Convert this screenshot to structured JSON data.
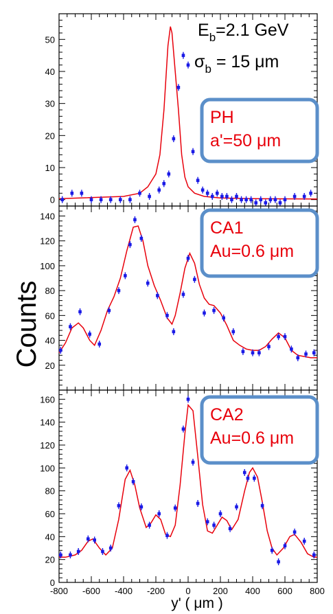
{
  "figure": {
    "ylabel": "Counts",
    "xlabel": "y' ( μm )",
    "beam_energy": "Eb=2.1 GeV",
    "beam_energy_main": "E",
    "beam_energy_sub": "b",
    "beam_energy_rest": "=2.1 GeV",
    "beam_sigma_main": "σ",
    "beam_sigma_sub": "b",
    "beam_sigma_rest": " = 15 μm"
  },
  "colors": {
    "fit": "#e8000b",
    "points": "#1a1ae6",
    "box_border": "#5b8fc9"
  },
  "chart_data": [
    {
      "type": "scatter",
      "title": "",
      "xlim": [
        -800,
        800
      ],
      "ylim": [
        -2,
        58
      ],
      "yticks": [
        0,
        10,
        20,
        30,
        40,
        50
      ],
      "box_lines": [
        "PH",
        "a'=50 μm"
      ],
      "series": [
        {
          "x": [
            -780,
            -720,
            -660,
            -600,
            -540,
            -480,
            -420,
            -360,
            -300,
            -240,
            -180,
            -150,
            -120,
            -90,
            -60,
            -30,
            0,
            30,
            60,
            90,
            120,
            150,
            180,
            210,
            240,
            270,
            300,
            330,
            360,
            390,
            420,
            450,
            480,
            510,
            540,
            570,
            600,
            660,
            720,
            760
          ],
          "y": [
            0,
            2,
            2,
            0,
            0,
            0,
            0,
            0,
            2,
            1,
            3,
            5,
            8,
            19,
            35,
            45,
            42,
            15,
            6,
            3,
            2,
            1,
            2,
            1,
            1,
            0,
            1,
            0,
            0,
            0,
            -1,
            0,
            -1,
            0,
            0,
            -1,
            0,
            1,
            1,
            2
          ]
        },
        {
          "x": [
            -800,
            -400,
            -300,
            -250,
            -200,
            -175,
            -150,
            -125,
            -110,
            -100,
            -80,
            -60,
            -40,
            -20,
            0,
            40,
            100,
            200,
            400,
            800
          ],
          "y": [
            0.3,
            1,
            2,
            4,
            8,
            14,
            28,
            48,
            54,
            52,
            40,
            28,
            14,
            7,
            4,
            2,
            1,
            0.5,
            0.3,
            0.2
          ]
        }
      ]
    },
    {
      "type": "scatter",
      "title": "",
      "xlim": [
        -800,
        800
      ],
      "ylim": [
        0,
        148
      ],
      "yticks": [
        20,
        40,
        60,
        80,
        100,
        120,
        140
      ],
      "box_lines": [
        "CA1",
        "Au=0.6 μm"
      ],
      "series": [
        {
          "x": [
            -790,
            -730,
            -670,
            -610,
            -550,
            -490,
            -430,
            -390,
            -360,
            -330,
            -290,
            -250,
            -190,
            -130,
            -90,
            -30,
            0,
            40,
            100,
            160,
            220,
            280,
            340,
            400,
            440,
            500,
            560,
            600,
            640,
            680,
            730,
            780
          ],
          "y": [
            32,
            51,
            63,
            45,
            37,
            64,
            80,
            92,
            117,
            137,
            122,
            86,
            76,
            60,
            47,
            77,
            106,
            89,
            62,
            64,
            58,
            47,
            31,
            30,
            30,
            35,
            43,
            43,
            33,
            26,
            29,
            30
          ]
        },
        {
          "x": [
            -800,
            -760,
            -720,
            -680,
            -650,
            -610,
            -580,
            -540,
            -500,
            -460,
            -420,
            -380,
            -340,
            -310,
            -280,
            -250,
            -210,
            -170,
            -130,
            -100,
            -80,
            -50,
            -20,
            10,
            40,
            70,
            100,
            130,
            160,
            200,
            240,
            280,
            320,
            360,
            400,
            440,
            480,
            520,
            560,
            600,
            640,
            680,
            720,
            760,
            800
          ],
          "y": [
            30,
            38,
            50,
            54,
            50,
            40,
            36,
            48,
            64,
            75,
            90,
            112,
            131,
            132,
            120,
            100,
            84,
            72,
            58,
            53,
            60,
            78,
            98,
            110,
            102,
            85,
            74,
            69,
            68,
            62,
            52,
            40,
            36,
            33,
            32,
            32,
            35,
            41,
            46,
            42,
            32,
            28,
            27,
            26,
            26
          ]
        }
      ]
    },
    {
      "type": "scatter",
      "title": "",
      "xlim": [
        -800,
        800
      ],
      "ylim": [
        0,
        168
      ],
      "yticks": [
        0,
        20,
        40,
        60,
        80,
        100,
        120,
        140,
        160
      ],
      "xticks": [
        -800,
        -600,
        -400,
        -200,
        0,
        200,
        400,
        600,
        800
      ],
      "box_lines": [
        "CA2",
        "Au=0.6 μm"
      ],
      "series": [
        {
          "x": [
            -790,
            -730,
            -680,
            -620,
            -580,
            -530,
            -480,
            -430,
            -380,
            -340,
            -290,
            -240,
            -180,
            -130,
            -80,
            -30,
            0,
            30,
            60,
            120,
            160,
            200,
            260,
            300,
            350,
            370,
            410,
            460,
            520,
            560,
            600,
            660,
            720,
            780
          ],
          "y": [
            24,
            24,
            27,
            38,
            37,
            27,
            30,
            67,
            100,
            88,
            66,
            50,
            60,
            41,
            65,
            134,
            160,
            105,
            69,
            53,
            50,
            60,
            47,
            66,
            96,
            91,
            91,
            67,
            28,
            18,
            32,
            44,
            36,
            24
          ]
        },
        {
          "x": [
            -800,
            -760,
            -700,
            -660,
            -620,
            -590,
            -550,
            -510,
            -470,
            -430,
            -390,
            -360,
            -330,
            -300,
            -260,
            -230,
            -200,
            -170,
            -140,
            -110,
            -80,
            -50,
            -20,
            0,
            30,
            60,
            90,
            120,
            150,
            180,
            210,
            240,
            270,
            310,
            350,
            380,
            400,
            430,
            460,
            490,
            520,
            550,
            590,
            630,
            660,
            700,
            740,
            780,
            800
          ],
          "y": [
            22,
            22,
            24,
            28,
            36,
            38,
            30,
            24,
            30,
            55,
            90,
            98,
            85,
            65,
            48,
            52,
            59,
            55,
            42,
            40,
            50,
            85,
            130,
            155,
            150,
            110,
            68,
            45,
            43,
            50,
            57,
            54,
            46,
            55,
            80,
            96,
            100,
            92,
            70,
            45,
            30,
            24,
            30,
            40,
            42,
            35,
            25,
            22,
            22
          ]
        }
      ]
    }
  ]
}
